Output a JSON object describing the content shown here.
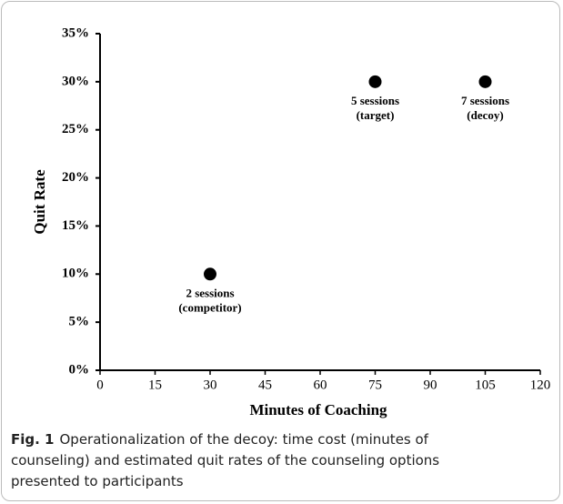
{
  "chart_data": {
    "type": "scatter",
    "ylabel": "Quit Rate",
    "xlabel": "Minutes of Coaching",
    "x": [
      30,
      75,
      105
    ],
    "values": [
      10,
      30,
      30
    ],
    "point_labels": [
      [
        "2 sessions",
        "(competitor)"
      ],
      [
        "5 sessions",
        "(target)"
      ],
      [
        "7 sessions",
        "(decoy)"
      ]
    ],
    "color": "#000000",
    "xlim": [
      0,
      120
    ],
    "xticks": [
      0,
      15,
      30,
      45,
      60,
      75,
      90,
      105,
      120
    ],
    "ylim": [
      0,
      35
    ],
    "yticks": [
      {
        "value": 0,
        "label": "0%"
      },
      {
        "value": 5,
        "label": "5%"
      },
      {
        "value": 10,
        "label": "10%"
      },
      {
        "value": 15,
        "label": "15%"
      },
      {
        "value": 20,
        "label": "20%"
      },
      {
        "value": 25,
        "label": "25%"
      },
      {
        "value": 30,
        "label": "30%"
      },
      {
        "value": 35,
        "label": "35%"
      }
    ]
  },
  "caption": {
    "label": "Fig. 1",
    "text": "Operationalization of the decoy: time cost (minutes of counseling) and estimated quit rates of the counseling options presented to participants"
  }
}
